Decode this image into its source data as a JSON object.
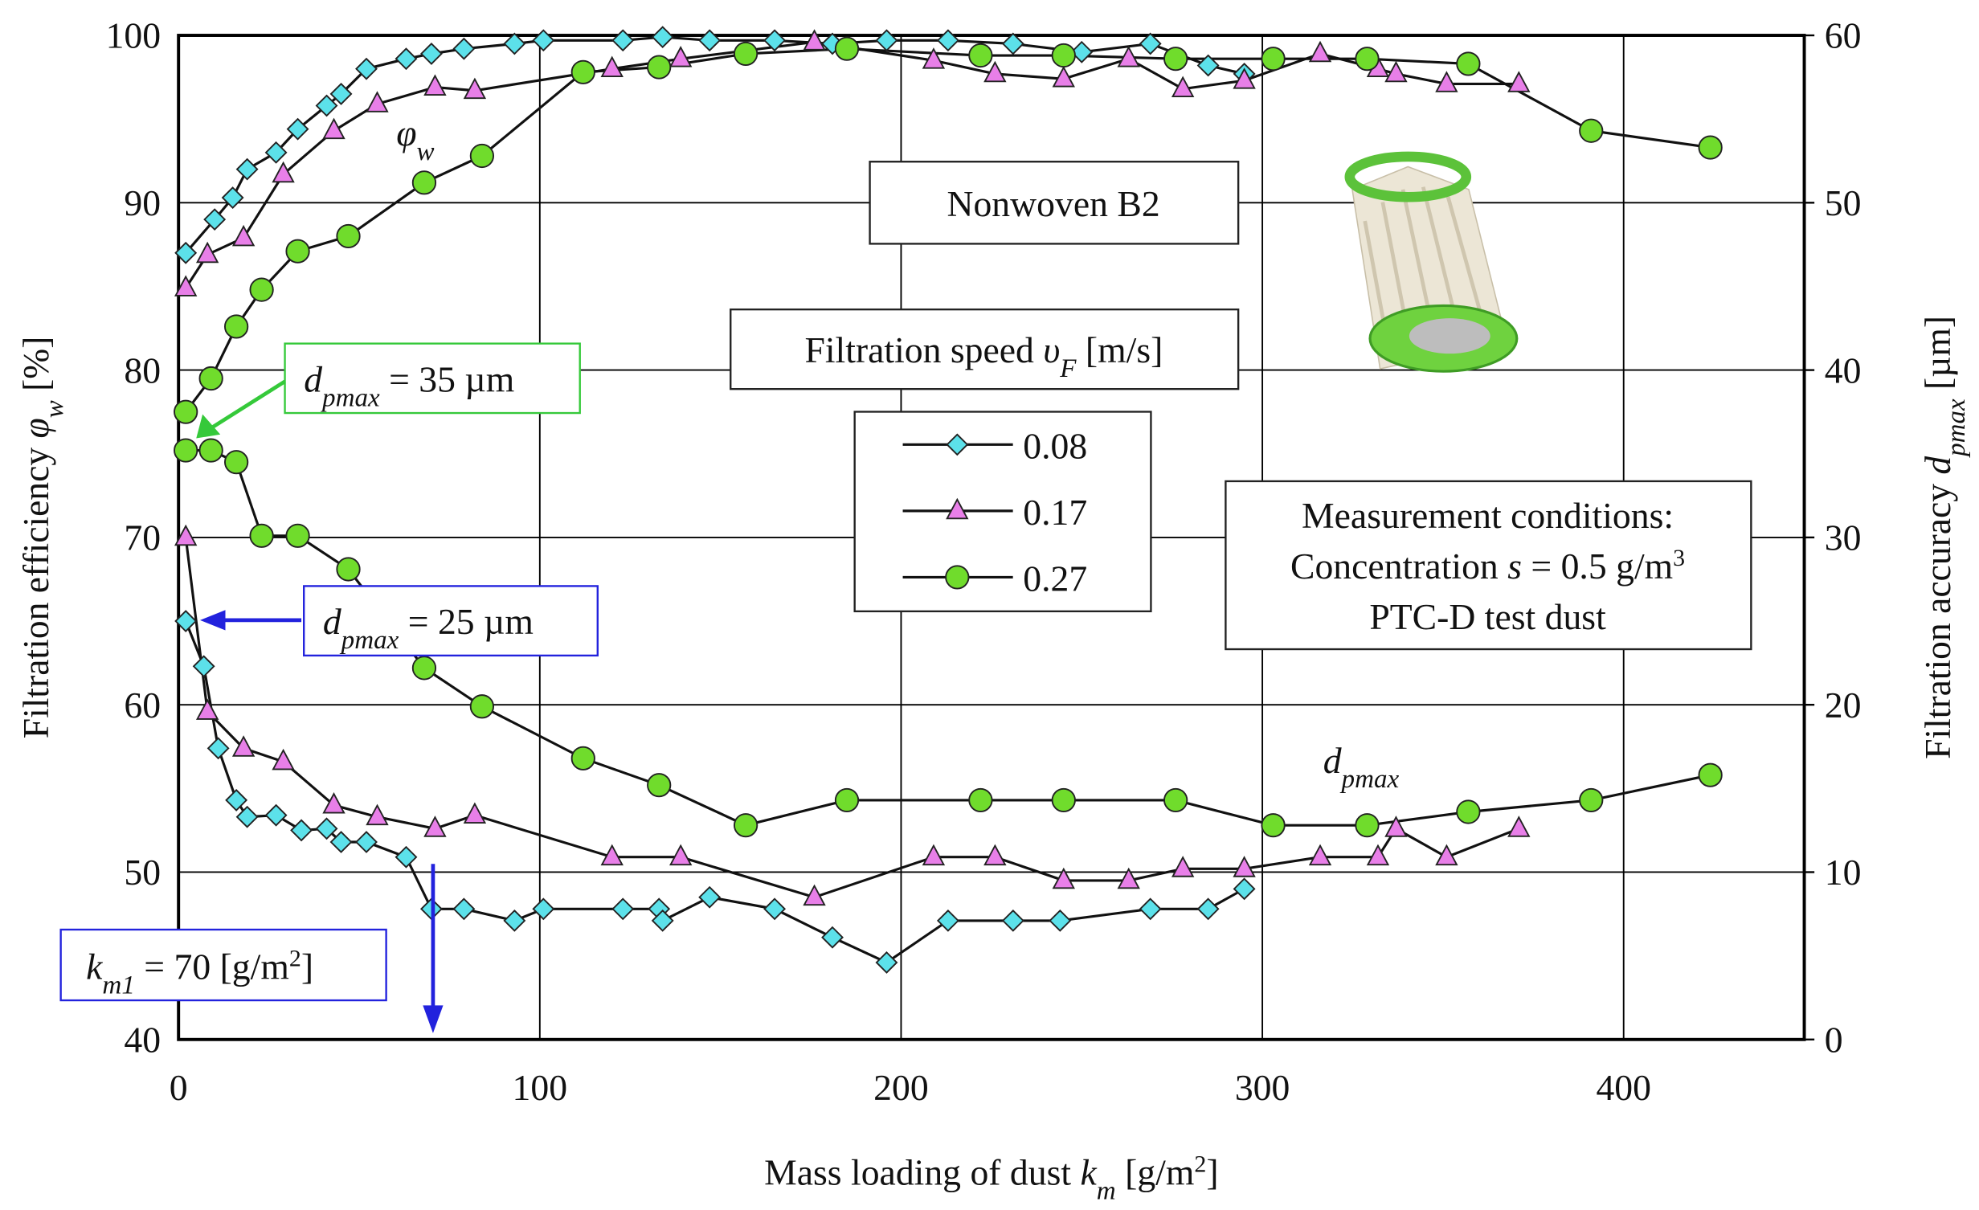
{
  "chart_data": {
    "type": "line",
    "x_label": [
      {
        "text": "Mass loading of dust "
      },
      {
        "text": "k",
        "style": "i"
      },
      {
        "text": "m",
        "style": "sub"
      },
      {
        "text": " [g/m"
      },
      {
        "text": "2",
        "style": "sup"
      },
      {
        "text": "]"
      }
    ],
    "y_label": [
      {
        "text": "Filtration efficiency "
      },
      {
        "text": "φ",
        "style": "i"
      },
      {
        "text": "w",
        "style": "sub"
      },
      {
        "text": " [%]"
      }
    ],
    "y2_label": [
      {
        "text": "Filtration accuracy "
      },
      {
        "text": "d",
        "style": "i"
      },
      {
        "text": "pmax",
        "style": "sub"
      },
      {
        "text": " [µm]"
      }
    ],
    "xlim": [
      0,
      450
    ],
    "xticks": [
      0,
      100,
      200,
      300,
      400
    ],
    "ylim": [
      40,
      100
    ],
    "yticks": [
      40,
      50,
      60,
      70,
      80,
      90,
      100
    ],
    "y2lim": [
      0,
      60
    ],
    "y2ticks": [
      0,
      10,
      20,
      30,
      40,
      50,
      60
    ],
    "grid": true,
    "legend_title": [
      {
        "text": "Filtration speed "
      },
      {
        "text": "υ",
        "style": "i"
      },
      {
        "text": "F",
        "style": "sub"
      },
      {
        "text": " [m/s]"
      }
    ],
    "series": [
      {
        "name": "0.08",
        "color": "#5ce1ea",
        "marker": "diamond",
        "axis": "y",
        "x": [
          2,
          10,
          15,
          19,
          27,
          33,
          41,
          45,
          52,
          63,
          70,
          79,
          93,
          101,
          123,
          134,
          147,
          165,
          181,
          196,
          213,
          231,
          250,
          269,
          285,
          295
        ],
        "values": [
          87,
          89,
          90.3,
          92,
          93,
          94.4,
          95.8,
          96.5,
          98,
          98.6,
          98.9,
          99.2,
          99.5,
          99.7,
          99.7,
          99.9,
          99.7,
          99.7,
          99.5,
          99.7,
          99.7,
          99.5,
          99,
          99.5,
          98.2,
          97.7
        ]
      },
      {
        "name": "0.17",
        "color": "#e87fe8",
        "marker": "triangle",
        "axis": "y",
        "x": [
          2,
          8,
          18,
          29,
          43,
          55,
          71,
          82,
          120,
          139,
          176,
          209,
          226,
          245,
          263,
          278,
          295,
          316,
          332,
          337,
          351,
          371
        ],
        "values": [
          84.9,
          86.9,
          87.9,
          91.7,
          94.3,
          95.9,
          96.9,
          96.7,
          98,
          98.6,
          99.6,
          98.5,
          97.7,
          97.4,
          98.6,
          96.8,
          97.3,
          98.9,
          98,
          97.7,
          97.1,
          97.1
        ]
      },
      {
        "name": "0.27",
        "color": "#70dc2c",
        "marker": "circle",
        "axis": "y",
        "x": [
          2,
          9,
          16,
          23,
          33,
          47,
          68,
          84,
          112,
          133,
          157,
          185,
          222,
          245,
          276,
          303,
          329,
          357,
          391,
          424
        ],
        "values": [
          77.5,
          79.5,
          82.6,
          84.8,
          87.1,
          88,
          91.2,
          92.8,
          97.8,
          98.1,
          98.9,
          99.2,
          98.8,
          98.8,
          98.6,
          98.6,
          98.6,
          98.3,
          94.3,
          93.3
        ]
      },
      {
        "color": "#5ce1ea",
        "marker": "diamond",
        "axis": "y2",
        "x": [
          2,
          7,
          11,
          16,
          19,
          27,
          34,
          41,
          45,
          52,
          63,
          70,
          79,
          93,
          101,
          123,
          133,
          134,
          147,
          165,
          181,
          196,
          213,
          231,
          244,
          269,
          285,
          295
        ],
        "values": [
          25,
          22.3,
          17.4,
          14.3,
          13.3,
          13.4,
          12.5,
          12.6,
          11.8,
          11.8,
          10.9,
          7.8,
          7.8,
          7.1,
          7.8,
          7.8,
          7.8,
          7.1,
          8.5,
          7.8,
          6.1,
          4.6,
          7.1,
          7.1,
          7.1,
          7.8,
          7.8,
          9
        ]
      },
      {
        "color": "#e87fe8",
        "marker": "triangle",
        "axis": "y2",
        "x": [
          2,
          8,
          18,
          29,
          43,
          55,
          71,
          82,
          120,
          139,
          176,
          209,
          226,
          245,
          263,
          278,
          295,
          316,
          332,
          337,
          351,
          371
        ],
        "values": [
          30,
          19.6,
          17.4,
          16.6,
          14,
          13.3,
          12.6,
          13.4,
          10.9,
          10.9,
          8.5,
          10.9,
          10.9,
          9.5,
          9.5,
          10.2,
          10.2,
          10.9,
          10.9,
          12.6,
          10.9,
          12.6
        ]
      },
      {
        "color": "#70dc2c",
        "marker": "circle",
        "axis": "y2",
        "x": [
          2,
          9,
          16,
          23,
          33,
          47,
          68,
          84,
          112,
          133,
          157,
          185,
          222,
          245,
          276,
          303,
          329,
          357,
          391,
          424
        ],
        "values": [
          35.2,
          35.2,
          34.5,
          30.1,
          30.1,
          28.1,
          22.2,
          19.9,
          16.8,
          15.2,
          12.8,
          14.3,
          14.3,
          14.3,
          14.3,
          12.8,
          12.8,
          13.6,
          14.3,
          15.8
        ]
      }
    ],
    "annotations": {
      "title_box": [
        {
          "text": "Nonwoven B2"
        }
      ],
      "phi_label": [
        {
          "text": "φ",
          "style": "i"
        },
        {
          "text": "w",
          "style": "sub"
        }
      ],
      "dpmax_label": [
        {
          "text": "d",
          "style": "i"
        },
        {
          "text": "pmax",
          "style": "sub"
        }
      ],
      "callout_35": [
        {
          "text": "d",
          "style": "i"
        },
        {
          "text": "pmax",
          "style": "sub"
        },
        {
          "text": " = 35 µm"
        }
      ],
      "callout_25": [
        {
          "text": "d",
          "style": "i"
        },
        {
          "text": "pmax",
          "style": "sub"
        },
        {
          "text": " = 25 µm"
        }
      ],
      "callout_km1": [
        {
          "text": "k",
          "style": "i"
        },
        {
          "text": "m1",
          "style": "sub"
        },
        {
          "text": " = 70 [g/m"
        },
        {
          "text": "2",
          "style": "sup"
        },
        {
          "text": "]"
        }
      ],
      "conditions": [
        [
          {
            "text": "Measurement conditions:"
          }
        ],
        [
          {
            "text": "Concentration "
          },
          {
            "text": "s",
            "style": "i"
          },
          {
            "text": " = 0.5 g/m"
          },
          {
            "text": "3",
            "style": "sup"
          }
        ],
        [
          {
            "text": "PTC-D test dust"
          }
        ]
      ]
    }
  }
}
